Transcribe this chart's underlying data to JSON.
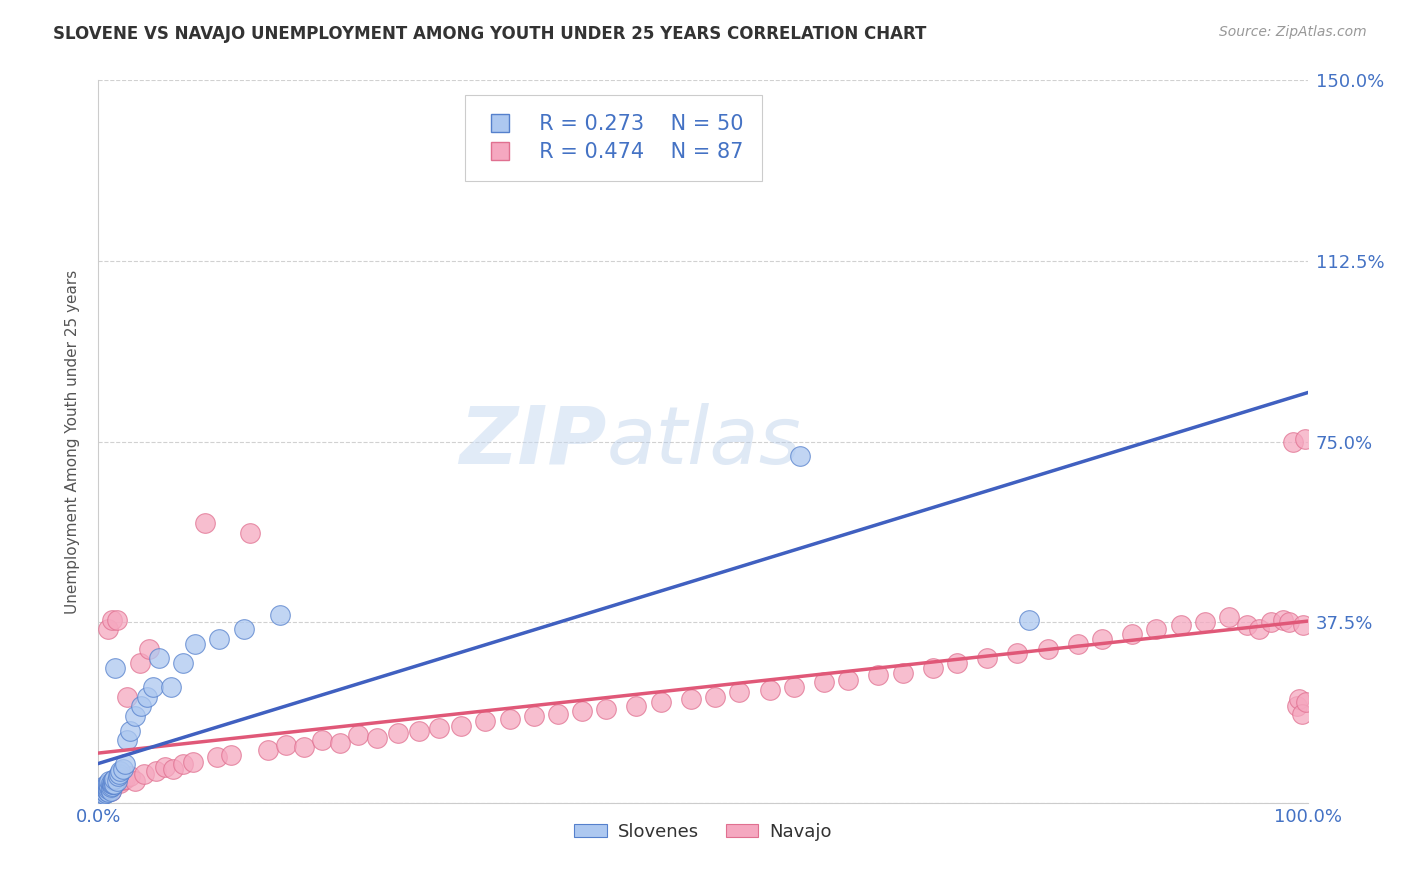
{
  "title": "SLOVENE VS NAVAJO UNEMPLOYMENT AMONG YOUTH UNDER 25 YEARS CORRELATION CHART",
  "source": "Source: ZipAtlas.com",
  "ylabel": "Unemployment Among Youth under 25 years",
  "xlim": [
    0.0,
    1.0
  ],
  "ylim": [
    0.0,
    1.5
  ],
  "xticks": [
    0.0,
    0.25,
    0.5,
    0.75,
    1.0
  ],
  "xtick_labels": [
    "0.0%",
    "",
    "",
    "",
    "100.0%"
  ],
  "yticks": [
    0.0,
    0.375,
    0.75,
    1.125,
    1.5
  ],
  "ytick_labels": [
    "",
    "37.5%",
    "75.0%",
    "112.5%",
    "150.0%"
  ],
  "slovene_color": "#adc8f0",
  "navajo_color": "#f5a8c0",
  "slovene_edge_color": "#5580cc",
  "navajo_edge_color": "#e07090",
  "slovene_line_color": "#4060c0",
  "navajo_line_color": "#e05878",
  "slovene_dash_color": "#7090d0",
  "slovene_R": 0.273,
  "slovene_N": 50,
  "navajo_R": 0.474,
  "navajo_N": 87,
  "watermark_zip": "ZIP",
  "watermark_atlas": "atlas",
  "slovene_x": [
    0.002,
    0.003,
    0.004,
    0.004,
    0.005,
    0.005,
    0.005,
    0.006,
    0.006,
    0.006,
    0.007,
    0.007,
    0.007,
    0.008,
    0.008,
    0.008,
    0.009,
    0.009,
    0.009,
    0.01,
    0.01,
    0.01,
    0.011,
    0.011,
    0.012,
    0.012,
    0.013,
    0.013,
    0.014,
    0.015,
    0.016,
    0.017,
    0.018,
    0.02,
    0.022,
    0.024,
    0.026,
    0.03,
    0.035,
    0.04,
    0.045,
    0.05,
    0.06,
    0.07,
    0.08,
    0.1,
    0.12,
    0.15,
    0.58,
    0.77
  ],
  "slovene_y": [
    0.02,
    0.025,
    0.022,
    0.03,
    0.018,
    0.025,
    0.035,
    0.02,
    0.028,
    0.032,
    0.025,
    0.03,
    0.038,
    0.022,
    0.028,
    0.04,
    0.03,
    0.035,
    0.045,
    0.025,
    0.032,
    0.042,
    0.035,
    0.04,
    0.038,
    0.048,
    0.04,
    0.05,
    0.28,
    0.045,
    0.055,
    0.06,
    0.065,
    0.07,
    0.08,
    0.13,
    0.15,
    0.18,
    0.2,
    0.22,
    0.24,
    0.3,
    0.24,
    0.29,
    0.33,
    0.34,
    0.36,
    0.39,
    0.72,
    0.38
  ],
  "navajo_x": [
    0.003,
    0.004,
    0.005,
    0.006,
    0.006,
    0.007,
    0.008,
    0.008,
    0.009,
    0.01,
    0.01,
    0.011,
    0.012,
    0.013,
    0.014,
    0.015,
    0.016,
    0.018,
    0.02,
    0.022,
    0.024,
    0.026,
    0.03,
    0.034,
    0.038,
    0.042,
    0.048,
    0.055,
    0.062,
    0.07,
    0.078,
    0.088,
    0.098,
    0.11,
    0.125,
    0.14,
    0.155,
    0.17,
    0.185,
    0.2,
    0.215,
    0.23,
    0.248,
    0.265,
    0.282,
    0.3,
    0.32,
    0.34,
    0.36,
    0.38,
    0.4,
    0.42,
    0.445,
    0.465,
    0.49,
    0.51,
    0.53,
    0.555,
    0.575,
    0.6,
    0.62,
    0.645,
    0.665,
    0.69,
    0.71,
    0.735,
    0.76,
    0.785,
    0.81,
    0.83,
    0.855,
    0.875,
    0.895,
    0.915,
    0.935,
    0.95,
    0.96,
    0.97,
    0.98,
    0.985,
    0.988,
    0.991,
    0.993,
    0.995,
    0.996,
    0.998,
    0.999
  ],
  "navajo_y": [
    0.03,
    0.025,
    0.028,
    0.022,
    0.035,
    0.028,
    0.032,
    0.36,
    0.038,
    0.025,
    0.042,
    0.38,
    0.035,
    0.04,
    0.038,
    0.38,
    0.045,
    0.042,
    0.048,
    0.05,
    0.22,
    0.055,
    0.045,
    0.29,
    0.06,
    0.32,
    0.065,
    0.075,
    0.07,
    0.08,
    0.085,
    0.58,
    0.095,
    0.1,
    0.56,
    0.11,
    0.12,
    0.115,
    0.13,
    0.125,
    0.14,
    0.135,
    0.145,
    0.15,
    0.155,
    0.16,
    0.17,
    0.175,
    0.18,
    0.185,
    0.19,
    0.195,
    0.2,
    0.21,
    0.215,
    0.22,
    0.23,
    0.235,
    0.24,
    0.25,
    0.255,
    0.265,
    0.27,
    0.28,
    0.29,
    0.3,
    0.31,
    0.32,
    0.33,
    0.34,
    0.35,
    0.36,
    0.37,
    0.375,
    0.385,
    0.37,
    0.36,
    0.375,
    0.38,
    0.375,
    0.75,
    0.2,
    0.215,
    0.185,
    0.37,
    0.755,
    0.21
  ]
}
